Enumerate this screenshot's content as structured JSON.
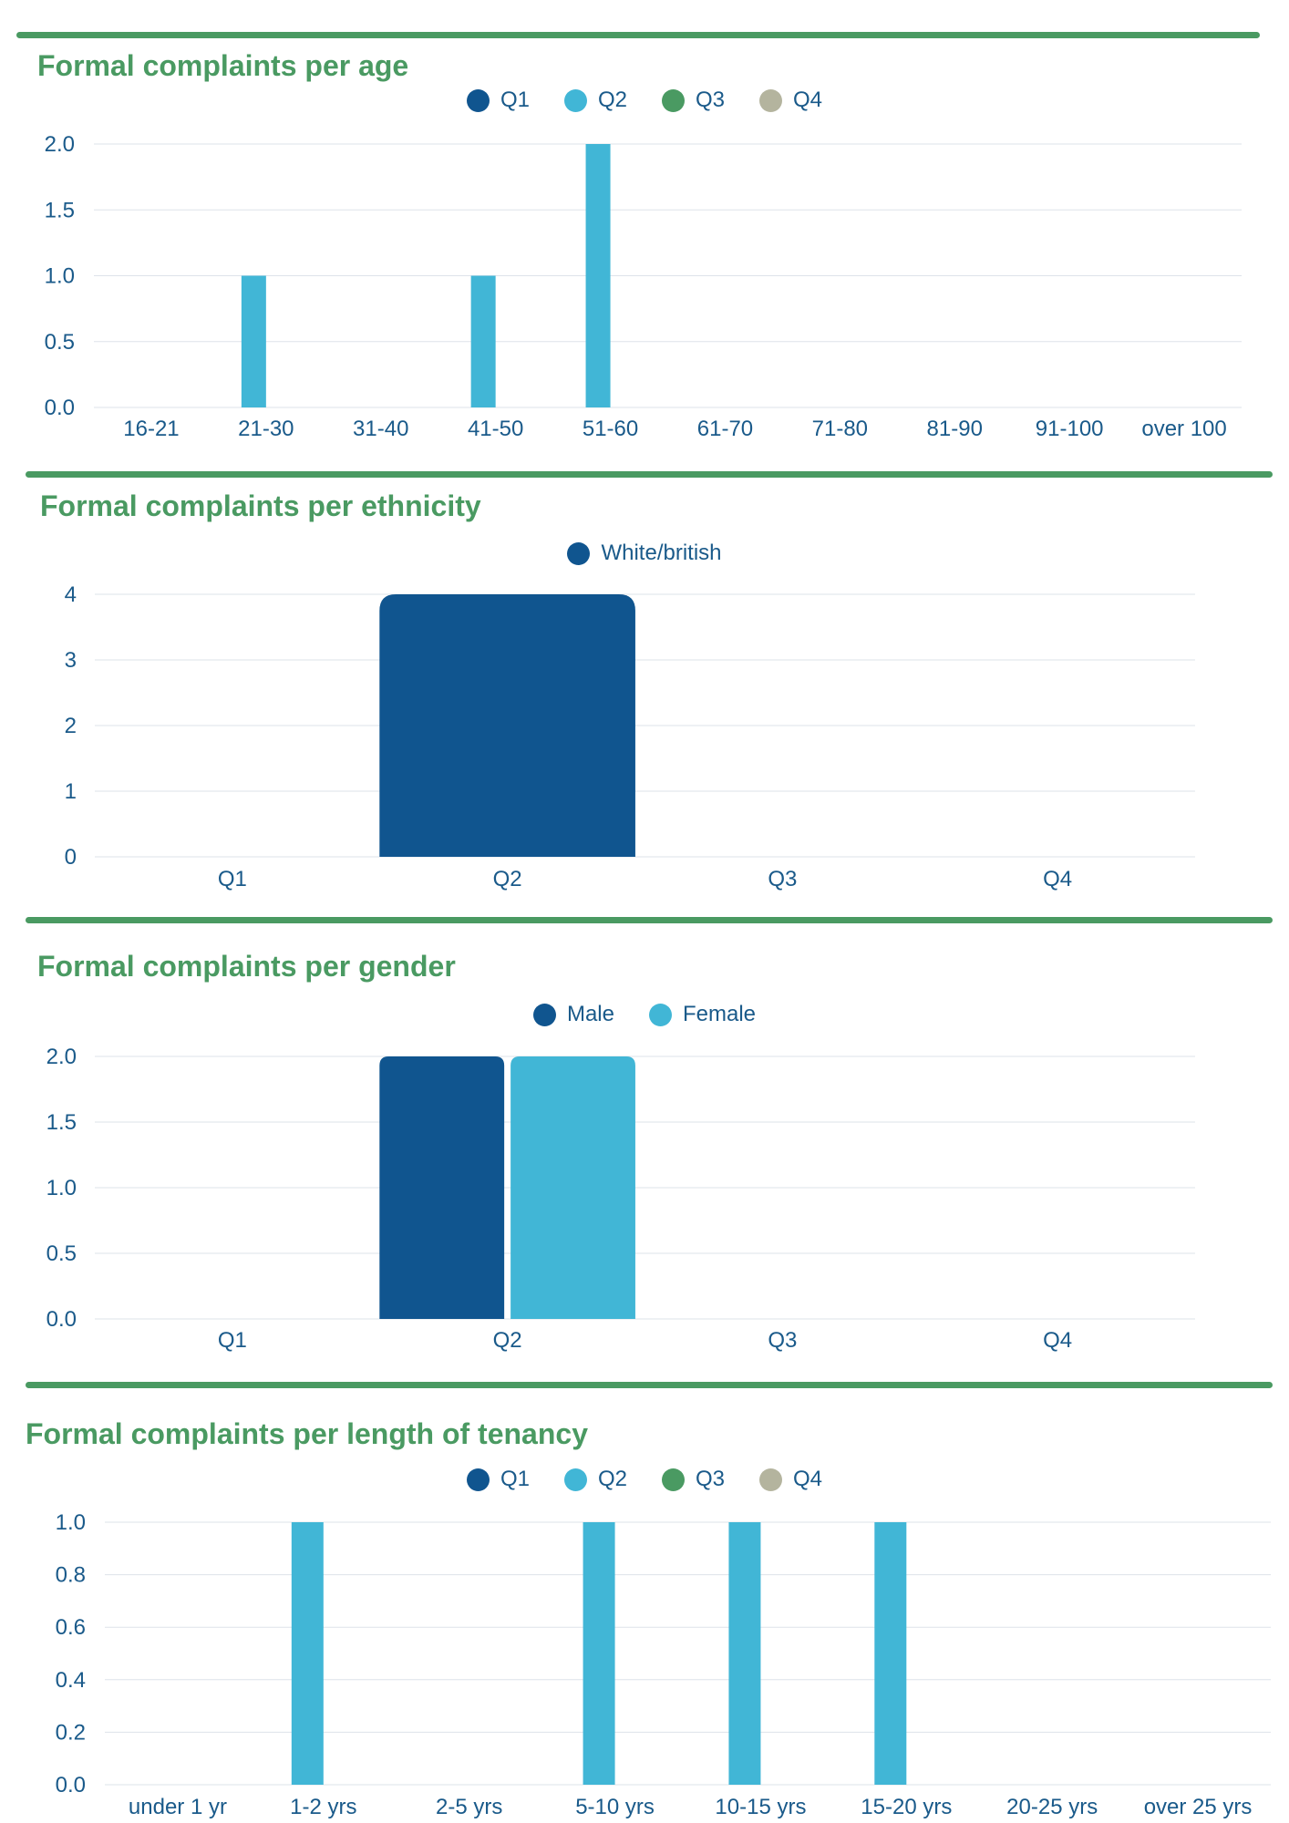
{
  "colors": {
    "accent_green": "#4a9a62",
    "text_blue": "#1a5a8a",
    "grid": "#dde3ea",
    "q1": "#10558f",
    "q2": "#41b6d6",
    "q3": "#4a9a62",
    "q4": "#b4b49e"
  },
  "chart_data": [
    {
      "type": "bar",
      "title": "Formal complaints per age",
      "categories": [
        "16-21",
        "21-30",
        "31-40",
        "41-50",
        "51-60",
        "61-70",
        "71-80",
        "81-90",
        "91-100",
        "over 100"
      ],
      "ylim": [
        0,
        2.0
      ],
      "yticks": [
        "0.0",
        "0.5",
        "1.0",
        "1.5",
        "2.0"
      ],
      "legend_position": "top-center",
      "grid": true,
      "series": [
        {
          "name": "Q1",
          "color": "#10558f",
          "values": [
            0,
            0,
            0,
            0,
            0,
            0,
            0,
            0,
            0,
            0
          ]
        },
        {
          "name": "Q2",
          "color": "#41b6d6",
          "values": [
            0,
            1,
            0,
            1,
            2,
            0,
            0,
            0,
            0,
            0
          ]
        },
        {
          "name": "Q3",
          "color": "#4a9a62",
          "values": [
            0,
            0,
            0,
            0,
            0,
            0,
            0,
            0,
            0,
            0
          ]
        },
        {
          "name": "Q4",
          "color": "#b4b49e",
          "values": [
            0,
            0,
            0,
            0,
            0,
            0,
            0,
            0,
            0,
            0
          ]
        }
      ]
    },
    {
      "type": "bar",
      "title": "Formal complaints per ethnicity",
      "categories": [
        "Q1",
        "Q2",
        "Q3",
        "Q4"
      ],
      "ylim": [
        0,
        4
      ],
      "yticks": [
        "0",
        "1",
        "2",
        "3",
        "4"
      ],
      "legend_position": "top-center",
      "grid": true,
      "series": [
        {
          "name": "White/british",
          "color": "#10558f",
          "values": [
            0,
            4,
            0,
            0
          ]
        }
      ]
    },
    {
      "type": "bar",
      "title": "Formal complaints per gender",
      "categories": [
        "Q1",
        "Q2",
        "Q3",
        "Q4"
      ],
      "ylim": [
        0,
        2.0
      ],
      "yticks": [
        "0.0",
        "0.5",
        "1.0",
        "1.5",
        "2.0"
      ],
      "legend_position": "top-center",
      "grid": true,
      "series": [
        {
          "name": "Male",
          "color": "#10558f",
          "values": [
            0,
            2,
            0,
            0
          ]
        },
        {
          "name": "Female",
          "color": "#41b6d6",
          "values": [
            0,
            2,
            0,
            0
          ]
        }
      ]
    },
    {
      "type": "bar",
      "title": "Formal complaints per length of tenancy",
      "categories": [
        "under 1 yr",
        "1-2 yrs",
        "2-5 yrs",
        "5-10 yrs",
        "10-15 yrs",
        "15-20 yrs",
        "20-25 yrs",
        "over 25 yrs"
      ],
      "ylim": [
        0,
        1.0
      ],
      "yticks": [
        "0.0",
        "0.2",
        "0.4",
        "0.6",
        "0.8",
        "1.0"
      ],
      "legend_position": "top-center",
      "grid": true,
      "series": [
        {
          "name": "Q1",
          "color": "#10558f",
          "values": [
            0,
            0,
            0,
            0,
            0,
            0,
            0,
            0
          ]
        },
        {
          "name": "Q2",
          "color": "#41b6d6",
          "values": [
            0,
            1,
            0,
            1,
            1,
            1,
            0,
            0
          ]
        },
        {
          "name": "Q3",
          "color": "#4a9a62",
          "values": [
            0,
            0,
            0,
            0,
            0,
            0,
            0,
            0
          ]
        },
        {
          "name": "Q4",
          "color": "#b4b49e",
          "values": [
            0,
            0,
            0,
            0,
            0,
            0,
            0,
            0
          ]
        }
      ]
    }
  ]
}
